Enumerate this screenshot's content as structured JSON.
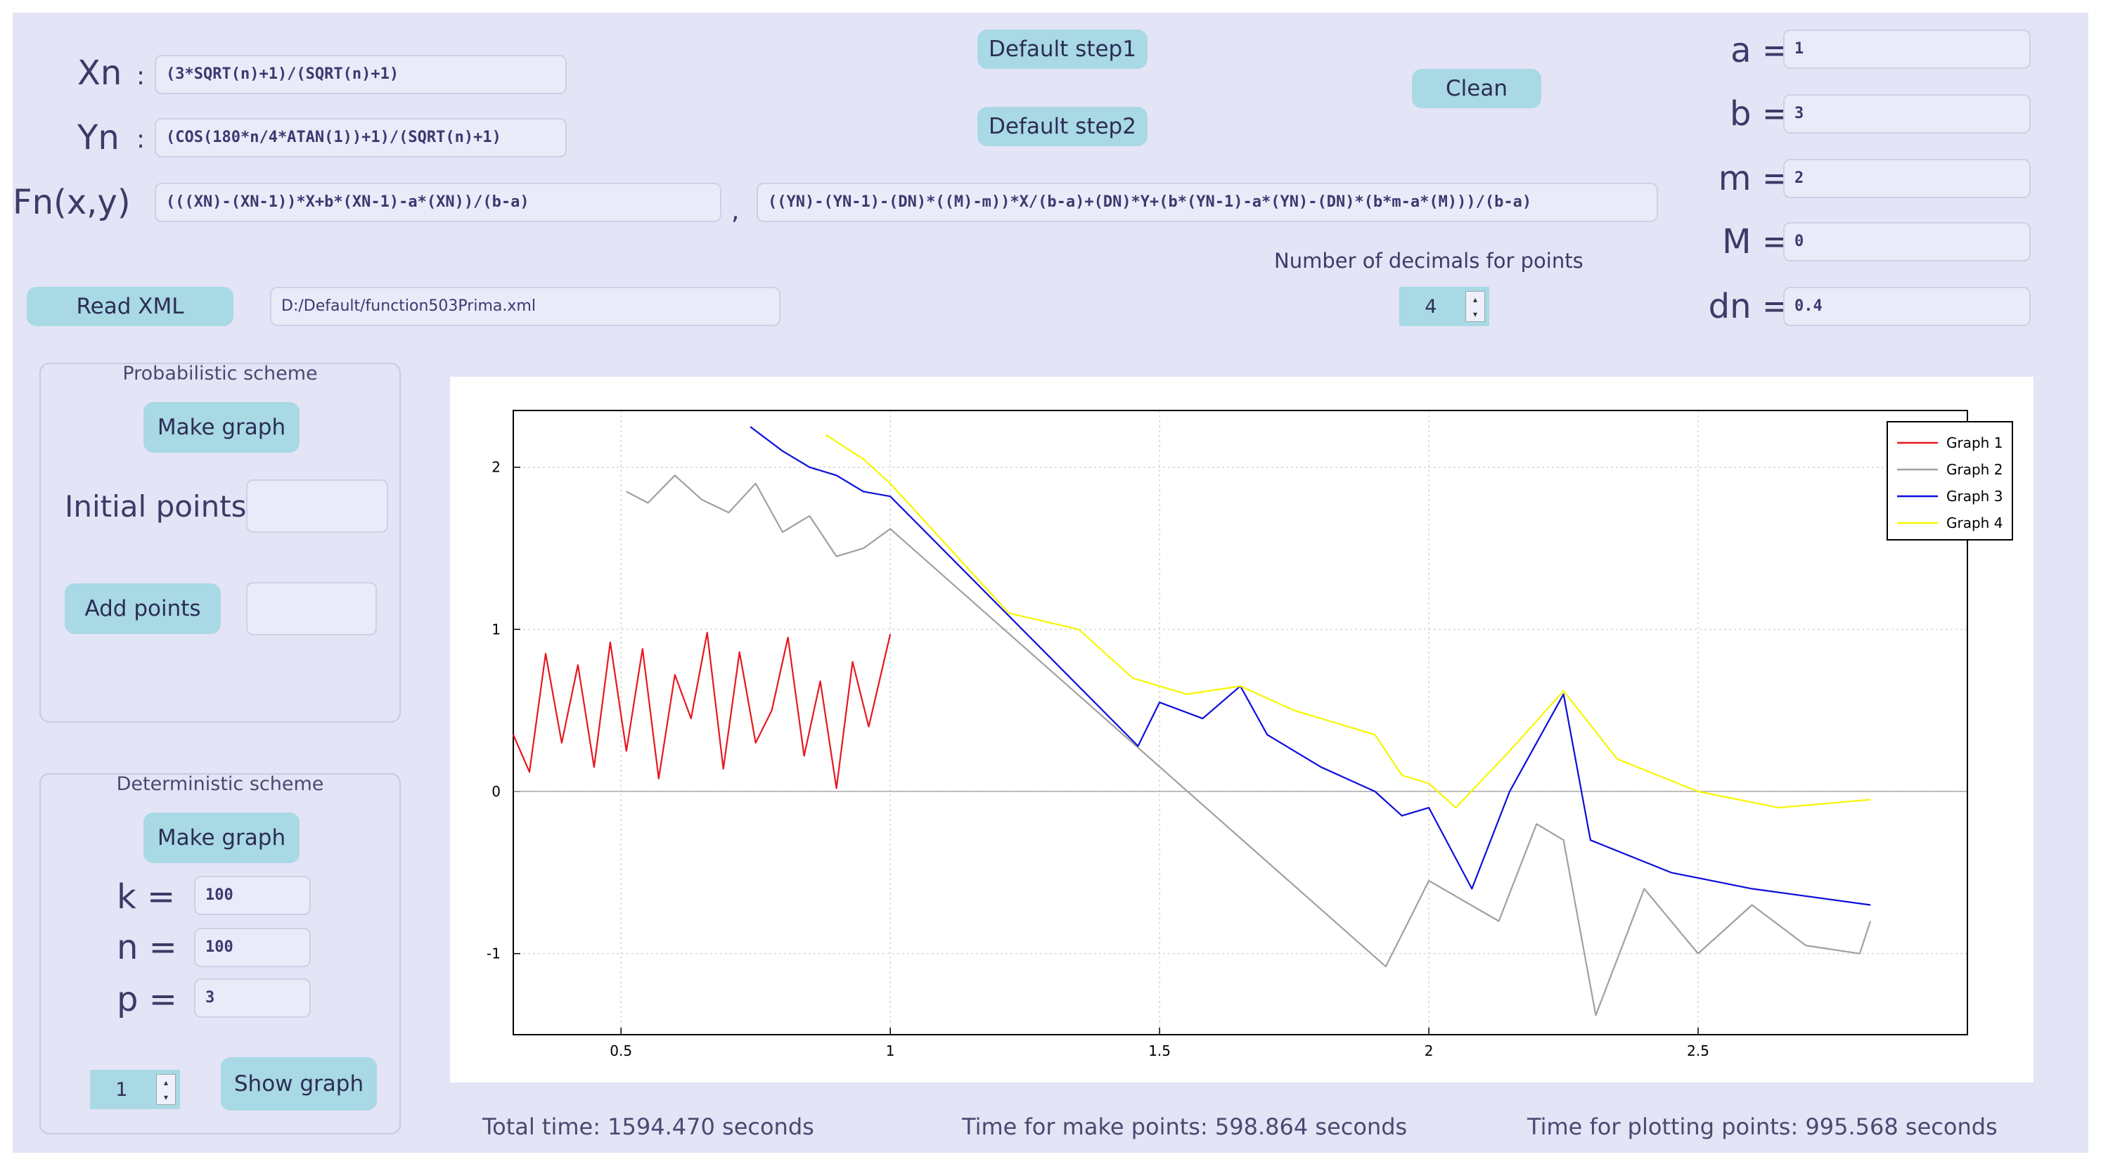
{
  "formulas": {
    "xn_label": "Xn",
    "yn_label": "Yn",
    "fn_label": "Fn(x,y)",
    "colon": ":",
    "comma": ",",
    "xn_value": "(3*SQRT(n)+1)/(SQRT(n)+1)",
    "yn_value": "(COS(180*n/4*ATAN(1))+1)/(SQRT(n)+1)",
    "fn_x_value": "(((XN)-(XN-1))*X+b*(XN-1)-a*(XN))/(b-a)",
    "fn_y_value": "((YN)-(YN-1)-(DN)*((M)-m))*X/(b-a)+(DN)*Y+(b*(YN-1)-a*(YN)-(DN)*(b*m-a*(M)))/(b-a)"
  },
  "toolbar": {
    "default_step1": "Default step1",
    "default_step2": "Default step2",
    "clean": "Clean",
    "read_xml": "Read XML",
    "xml_path": "D:/Default/function503Prima.xml",
    "decimals_label": "Number of decimals for points",
    "decimals_value": "4"
  },
  "params": {
    "a_label": "a =",
    "a_value": "1",
    "b_label": "b =",
    "b_value": "3",
    "m_label": "m =",
    "m_value": "2",
    "M_label": "M =",
    "M_value": "0",
    "dn_label": "dn =",
    "dn_value": "0.4"
  },
  "probabilistic": {
    "title": "Probabilistic scheme",
    "make_graph": "Make graph",
    "initial_points_label": "Initial points:",
    "initial_points_value": "",
    "add_points": "Add points",
    "add_points_value": ""
  },
  "deterministic": {
    "title": "Deterministic scheme",
    "make_graph": "Make graph",
    "k_label": "k =",
    "k_value": "100",
    "n_label": "n =",
    "n_value": "100",
    "p_label": "p =",
    "p_value": "3",
    "graph_index": "1",
    "show_graph": "Show graph"
  },
  "status": {
    "total_time": "Total time: 1594.470 seconds",
    "make_points_time": "Time for make points: 598.864 seconds",
    "plot_points_time": "Time for plotting points: 995.568 seconds"
  },
  "chart_data": {
    "type": "line",
    "xlim": [
      0.3,
      3.0
    ],
    "ylim": [
      -1.5,
      2.35
    ],
    "x_ticks": [
      "0.5",
      "1",
      "1.5",
      "2",
      "2.5"
    ],
    "y_ticks": [
      "-1",
      "0",
      "1",
      "2"
    ],
    "grid": true,
    "legend_position": "top-right",
    "series": [
      {
        "name": "Graph 1",
        "color": "#e8171f",
        "points": [
          [
            0.3,
            0.35
          ],
          [
            0.33,
            0.12
          ],
          [
            0.36,
            0.85
          ],
          [
            0.39,
            0.3
          ],
          [
            0.42,
            0.78
          ],
          [
            0.45,
            0.15
          ],
          [
            0.48,
            0.92
          ],
          [
            0.51,
            0.25
          ],
          [
            0.54,
            0.88
          ],
          [
            0.57,
            0.08
          ],
          [
            0.6,
            0.72
          ],
          [
            0.63,
            0.45
          ],
          [
            0.66,
            0.98
          ],
          [
            0.69,
            0.14
          ],
          [
            0.72,
            0.86
          ],
          [
            0.75,
            0.3
          ],
          [
            0.78,
            0.5
          ],
          [
            0.81,
            0.95
          ],
          [
            0.84,
            0.22
          ],
          [
            0.87,
            0.68
          ],
          [
            0.9,
            0.02
          ],
          [
            0.93,
            0.8
          ],
          [
            0.96,
            0.4
          ],
          [
            1.0,
            0.97
          ]
        ]
      },
      {
        "name": "Graph 2",
        "color": "#a0a0a0",
        "points": [
          [
            0.51,
            1.85
          ],
          [
            0.55,
            1.78
          ],
          [
            0.6,
            1.95
          ],
          [
            0.65,
            1.8
          ],
          [
            0.7,
            1.72
          ],
          [
            0.75,
            1.9
          ],
          [
            0.8,
            1.6
          ],
          [
            0.85,
            1.7
          ],
          [
            0.9,
            1.45
          ],
          [
            0.95,
            1.5
          ],
          [
            1.0,
            1.62
          ],
          [
            1.92,
            -1.08
          ],
          [
            1.97,
            -0.75
          ],
          [
            2.0,
            -0.55
          ],
          [
            2.13,
            -0.8
          ],
          [
            2.2,
            -0.2
          ],
          [
            2.25,
            -0.3
          ],
          [
            2.31,
            -1.38
          ],
          [
            2.4,
            -0.6
          ],
          [
            2.5,
            -1.0
          ],
          [
            2.6,
            -0.7
          ],
          [
            2.7,
            -0.95
          ],
          [
            2.8,
            -1.0
          ],
          [
            2.82,
            -0.8
          ]
        ]
      },
      {
        "name": "Graph 3",
        "color": "#0d0ddc",
        "points": [
          [
            0.74,
            2.25
          ],
          [
            0.8,
            2.1
          ],
          [
            0.85,
            2.0
          ],
          [
            0.9,
            1.95
          ],
          [
            0.95,
            1.85
          ],
          [
            1.0,
            1.82
          ],
          [
            1.46,
            0.28
          ],
          [
            1.5,
            0.55
          ],
          [
            1.58,
            0.45
          ],
          [
            1.65,
            0.65
          ],
          [
            1.7,
            0.35
          ],
          [
            1.8,
            0.15
          ],
          [
            1.9,
            0.0
          ],
          [
            1.95,
            -0.15
          ],
          [
            2.0,
            -0.1
          ],
          [
            2.08,
            -0.6
          ],
          [
            2.15,
            0.0
          ],
          [
            2.25,
            0.6
          ],
          [
            2.3,
            -0.3
          ],
          [
            2.45,
            -0.5
          ],
          [
            2.6,
            -0.6
          ],
          [
            2.82,
            -0.7
          ]
        ]
      },
      {
        "name": "Graph 4",
        "color": "#f6f600",
        "points": [
          [
            0.88,
            2.2
          ],
          [
            0.95,
            2.05
          ],
          [
            1.0,
            1.9
          ],
          [
            1.22,
            1.1
          ],
          [
            1.35,
            1.0
          ],
          [
            1.45,
            0.7
          ],
          [
            1.55,
            0.6
          ],
          [
            1.65,
            0.65
          ],
          [
            1.75,
            0.5
          ],
          [
            1.9,
            0.35
          ],
          [
            1.95,
            0.1
          ],
          [
            2.0,
            0.05
          ],
          [
            2.05,
            -0.1
          ],
          [
            2.15,
            0.25
          ],
          [
            2.25,
            0.62
          ],
          [
            2.35,
            0.2
          ],
          [
            2.5,
            0.0
          ],
          [
            2.65,
            -0.1
          ],
          [
            2.82,
            -0.05
          ]
        ]
      }
    ]
  }
}
